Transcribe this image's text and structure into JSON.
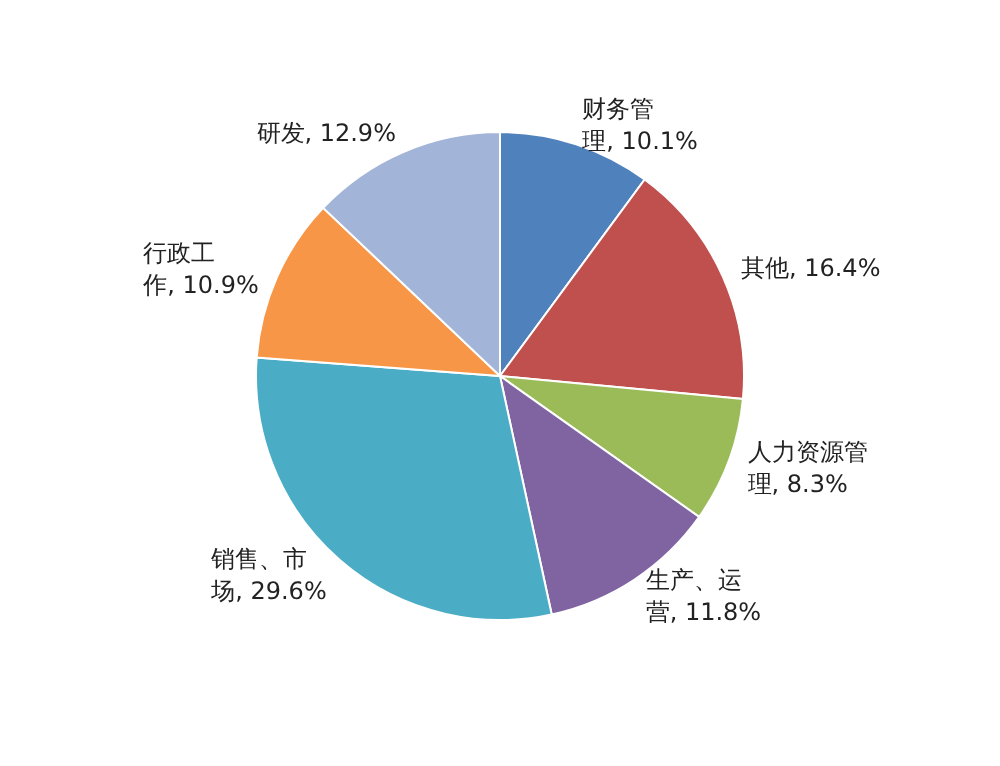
{
  "chart_data": {
    "type": "pie",
    "categories": [
      "财务管理",
      "其他",
      "人力资源管理",
      "生产、运营",
      "销售、市场",
      "行政工作",
      "研发"
    ],
    "values": [
      10.1,
      16.4,
      8.3,
      11.8,
      29.6,
      10.9,
      12.9
    ],
    "value_labels": [
      ", 10.1%",
      ", 16.4%",
      ", 8.3%",
      ", 11.8%",
      ", 29.6%",
      ", 10.9%",
      ", 12.9%"
    ],
    "colors": [
      "#4f81bd",
      "#c0504d",
      "#9bbb59",
      "#8064a2",
      "#4bacc6",
      "#f79646",
      "#a3b4d9"
    ]
  }
}
